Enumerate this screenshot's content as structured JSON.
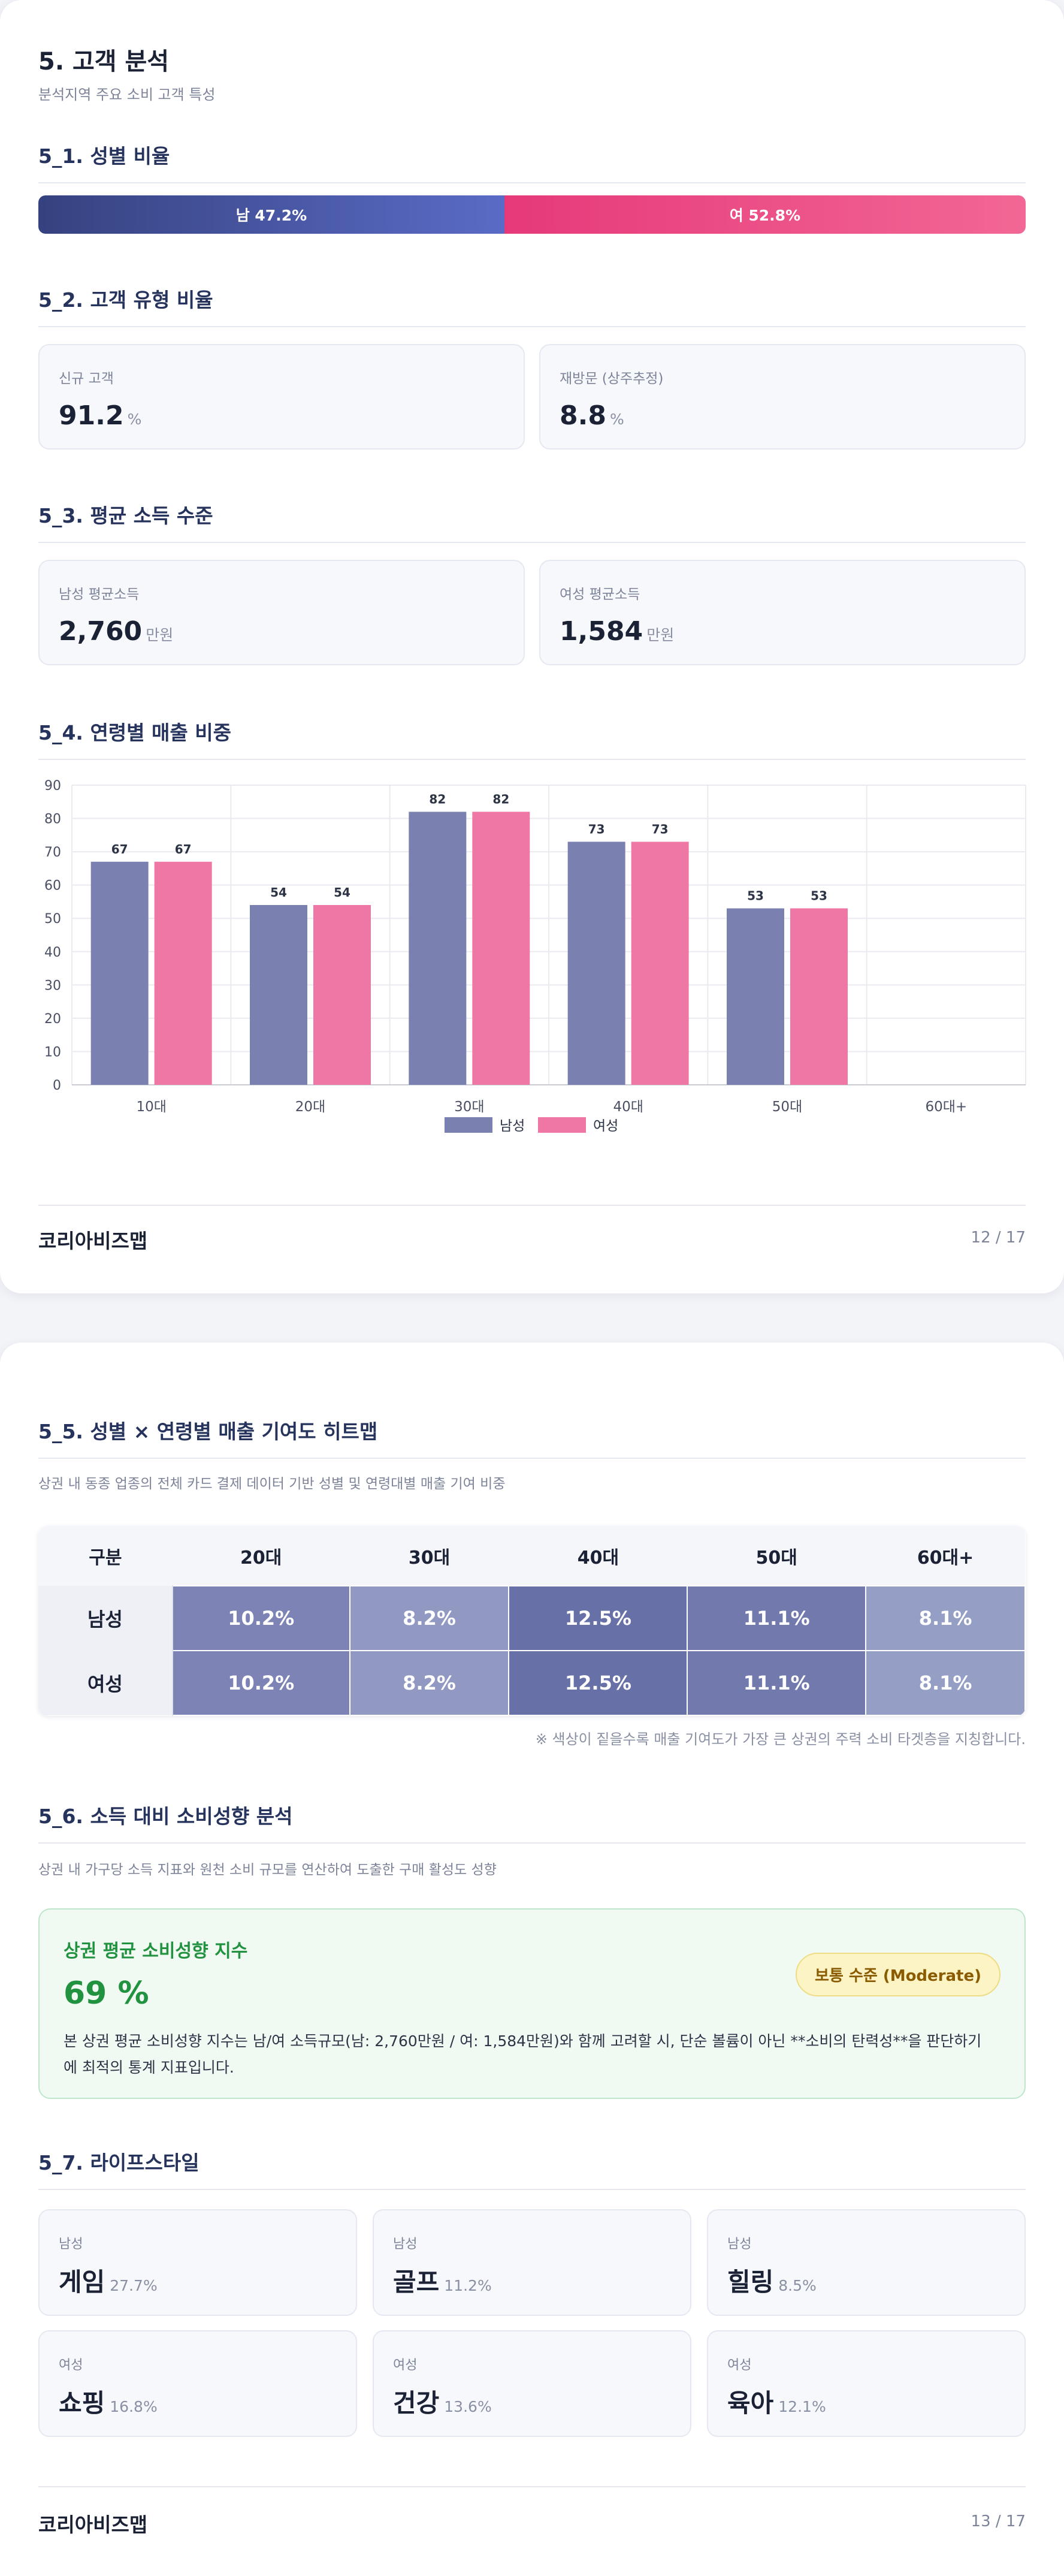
{
  "page1": {
    "title": "5. 고객 분석",
    "subtitle": "분석지역 주요 소비 고객 특성",
    "sec_gender": "5_1. 성별 비율",
    "gender": {
      "male_label": "남 47.2%",
      "female_label": "여 52.8%",
      "male_pct": 47.2,
      "female_pct": 52.8
    },
    "sec_type": "5_2. 고객 유형 비율",
    "type_cards": [
      {
        "label": "신규 고객",
        "value": "91.2",
        "unit": "%"
      },
      {
        "label": "재방문 (상주추정)",
        "value": "8.8",
        "unit": "%"
      }
    ],
    "sec_income": "5_3. 평균 소득 수준",
    "income_cards": [
      {
        "label": "남성 평균소득",
        "value": "2,760",
        "unit": "만원"
      },
      {
        "label": "여성 평균소득",
        "value": "1,584",
        "unit": "만원"
      }
    ],
    "sec_age": "5_4. 연령별 매출 비중",
    "brand": "코리아비즈맵",
    "page_no": "12 / 17"
  },
  "chart_data": {
    "type": "bar",
    "categories": [
      "10대",
      "20대",
      "30대",
      "40대",
      "50대",
      "60대+"
    ],
    "series": [
      {
        "name": "남성",
        "values": [
          67,
          54,
          82,
          73,
          53,
          null
        ],
        "color": "#7a81b1"
      },
      {
        "name": "여성",
        "values": [
          67,
          54,
          82,
          73,
          53,
          null
        ],
        "color": "#ee77a5"
      }
    ],
    "yticks": [
      "0",
      "10",
      "20",
      "30",
      "40",
      "50",
      "60",
      "70",
      "80",
      "90"
    ],
    "ylim": [
      0,
      90
    ],
    "grid": true,
    "legend_position": "bottom"
  },
  "page2": {
    "sec_heat": "5_5. 성별 × 연령별 매출 기여도 히트맵",
    "heat_desc": "상권 내 동종 업종의 전체 카드 결제 데이터 기반 성별 및 연령대별 매출 기여 비중",
    "heatmap": {
      "corner": "구분",
      "columns": [
        "20대",
        "30대",
        "40대",
        "50대",
        "60대+"
      ],
      "rows": [
        {
          "label": "남성",
          "cells": [
            "10.2%",
            "8.2%",
            "12.5%",
            "11.1%",
            "8.1%"
          ]
        },
        {
          "label": "여성",
          "cells": [
            "10.2%",
            "8.2%",
            "12.5%",
            "11.1%",
            "8.1%"
          ]
        }
      ]
    },
    "heat_note": "※ 색상이 짙을수록 매출 기여도가 가장 큰 상권의 주력 소비 타겟층을 지칭합니다.",
    "sec_consume": "5_6. 소득 대비 소비성향 분석",
    "consume_desc": "상권 내 가구당 소득 지표와 원천 소비 규모를 연산하여 도출한 구매 활성도 성향",
    "consume": {
      "title": "상권 평균 소비성향 지수",
      "value": "69 %",
      "badge": "보통 수준 (Moderate)",
      "desc_1": "본 상권 평균 소비성향 지수는 남/여 소득규모(남: 2,760만원 / 여: 1,584만원)와 함께 고려할 시, 단순 볼륨이 아닌 **소비의 탄력성**을 판단하기",
      "desc_2": "에 최적의 통계 지표입니다."
    },
    "sec_life": "5_7. 라이프스타일",
    "lifestyle": [
      {
        "gender": "남성",
        "name": "게임",
        "pct": "27.7%"
      },
      {
        "gender": "남성",
        "name": "골프",
        "pct": "11.2%"
      },
      {
        "gender": "남성",
        "name": "힐링",
        "pct": "8.5%"
      },
      {
        "gender": "여성",
        "name": "쇼핑",
        "pct": "16.8%"
      },
      {
        "gender": "여성",
        "name": "건강",
        "pct": "13.6%"
      },
      {
        "gender": "여성",
        "name": "육아",
        "pct": "12.1%"
      }
    ],
    "brand": "코리아비즈맵",
    "page_no": "13 / 17"
  }
}
